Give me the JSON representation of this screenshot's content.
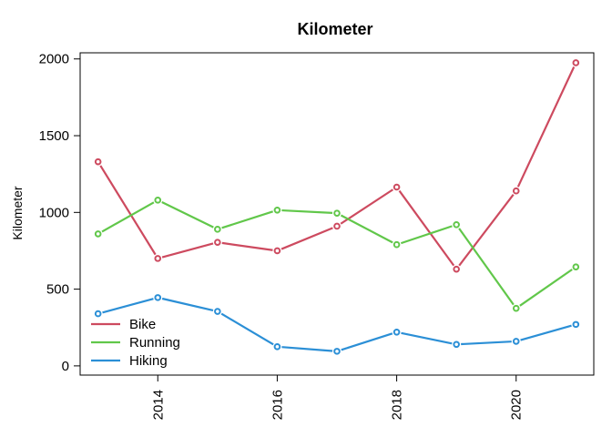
{
  "chart_data": {
    "type": "line",
    "title": "Kilometer",
    "xlabel": "",
    "ylabel": "Kilometer",
    "xlim": [
      2012.7,
      2021.3
    ],
    "ylim": [
      -60,
      2040
    ],
    "x_ticks": [
      2014,
      2016,
      2018,
      2020
    ],
    "y_ticks": [
      0,
      500,
      1000,
      1500,
      2000
    ],
    "grid": false,
    "legend_position": "bottom-left",
    "x": [
      2013,
      2014,
      2015,
      2016,
      2017,
      2018,
      2019,
      2020,
      2021
    ],
    "series": [
      {
        "name": "Bike",
        "color": "#cd4a5f",
        "values": [
          1330,
          700,
          805,
          750,
          910,
          1165,
          630,
          1140,
          1975
        ]
      },
      {
        "name": "Running",
        "color": "#61c74a",
        "values": [
          860,
          1080,
          890,
          1015,
          995,
          790,
          920,
          375,
          645
        ]
      },
      {
        "name": "Hiking",
        "color": "#2b8fd6",
        "values": [
          340,
          445,
          355,
          125,
          95,
          220,
          140,
          160,
          270
        ]
      }
    ]
  }
}
